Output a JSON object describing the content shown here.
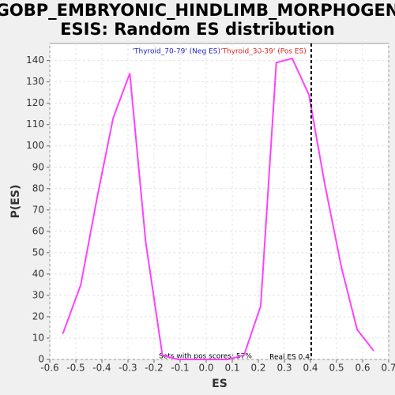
{
  "chart_data": {
    "type": "line",
    "title": [
      "GOBP_EMBRYONIC_HINDLIMB_MORPHOGEN",
      "ESIS: Random ES distribution"
    ],
    "xlabel": "ES",
    "ylabel": "P(ES)",
    "neg_label": "'Thyroid_70-79' (Neg ES)",
    "pos_label": "'Thyroid_30-39' (Pos ES)",
    "pos_scores_label": "Sets with pos scores: 57%",
    "real_es": {
      "value": 0.403,
      "label": "Real ES 0.4"
    },
    "x": [
      -0.55,
      -0.481,
      -0.418,
      -0.357,
      -0.293,
      -0.232,
      -0.168,
      -0.108,
      -0.044,
      0.02,
      0.084,
      0.145,
      0.209,
      0.269,
      0.33,
      0.394,
      0.455,
      0.519,
      0.579,
      0.643
    ],
    "series": [
      {
        "name": "P(ES)",
        "color": "#ff40ff",
        "values": [
          12,
          35,
          76,
          113,
          134,
          55,
          2,
          0,
          0,
          0,
          0,
          2,
          25,
          139,
          141,
          124,
          82,
          43,
          14,
          4
        ]
      }
    ],
    "xlim": [
      -0.6,
      0.7
    ],
    "xticks": [
      -0.6,
      -0.5,
      -0.4,
      -0.3,
      -0.2,
      -0.1,
      {
        "value": 0,
        "label": "0.0"
      },
      0.1,
      0.2,
      0.3,
      0.4,
      0.5,
      0.6,
      0.7
    ],
    "ylim": [
      0,
      148
    ],
    "yticks": [
      0,
      10,
      20,
      30,
      40,
      50,
      60,
      70,
      80,
      90,
      100,
      110,
      120,
      130,
      140
    ],
    "grid": true
  }
}
